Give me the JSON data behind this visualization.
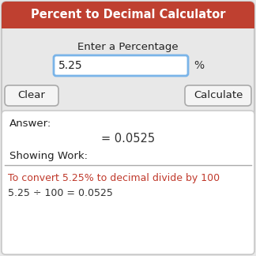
{
  "title": "Percent to Decimal Calculator",
  "title_bg": "#bf4030",
  "title_color": "#ffffff",
  "title_fontsize": 10.5,
  "bg_color": "#e8e8e8",
  "outer_border": "#c8c8c8",
  "label_text": "Enter a Percentage",
  "label_fontsize": 9.5,
  "input_value": "5.25",
  "input_fontsize": 10,
  "input_border_color": "#7ab4e8",
  "input_bg": "#ffffff",
  "percent_symbol": "%",
  "clear_btn_text": "Clear",
  "calculate_btn_text": "Calculate",
  "btn_fontsize": 9.5,
  "btn_bg": "#f4f4f4",
  "btn_border": "#aaaaaa",
  "answer_box_bg": "#ffffff",
  "answer_box_border": "#cccccc",
  "answer_label": "Answer:",
  "answer_value": "= 0.0525",
  "showing_work_label": "Showing Work:",
  "work_line1": "To convert 5.25% to decimal divide by 100",
  "work_line2": "5.25 ÷ 100 = 0.0525",
  "answer_fontsize": 9.5,
  "work_line1_color": "#c0392b",
  "work_line2_color": "#333333",
  "separator_color": "#aaaaaa"
}
